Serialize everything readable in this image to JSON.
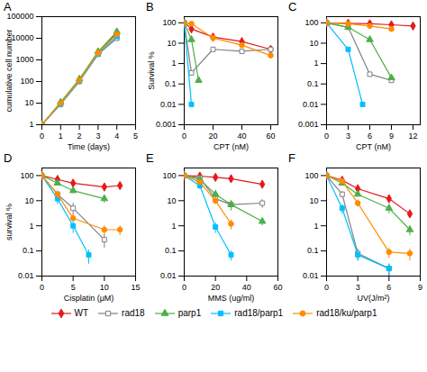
{
  "chart_data": [
    {
      "type": "line",
      "title": "A",
      "xlabel": "Time (days)",
      "ylabel": "cumulative cell number",
      "log": "y",
      "legend": "bottom",
      "xlim": [
        0,
        5
      ],
      "xticks": [
        0,
        1,
        2,
        3,
        4,
        5
      ],
      "ylim": [
        1,
        100000
      ],
      "yticks": [
        1,
        10,
        100,
        1000,
        10000,
        100000
      ],
      "series": [
        {
          "name": "WT",
          "color": "#e41a1c",
          "marker": "diamond",
          "x": [
            0,
            1,
            2,
            3,
            4
          ],
          "values": [
            1,
            10,
            120,
            2200,
            18000
          ]
        },
        {
          "name": "rad18",
          "color": "#808080",
          "marker": "open square",
          "x": [
            0,
            1,
            2,
            3,
            4
          ],
          "values": [
            1,
            9,
            100,
            1800,
            10000
          ]
        },
        {
          "name": "parp1",
          "color": "#4daf4a",
          "marker": "triangle",
          "x": [
            0,
            1,
            2,
            3,
            4
          ],
          "values": [
            1,
            11,
            130,
            2400,
            20000
          ]
        },
        {
          "name": "rad18/parp1",
          "color": "#00bfff",
          "marker": "square",
          "x": [
            0,
            1,
            2,
            3,
            4
          ],
          "values": [
            1,
            9,
            105,
            1900,
            12000
          ]
        },
        {
          "name": "rad18/ku/parp1",
          "color": "#ff8c00",
          "marker": "circle",
          "x": [
            0,
            1,
            2,
            3,
            4
          ],
          "values": [
            1,
            10,
            115,
            2100,
            15000
          ]
        }
      ]
    },
    {
      "type": "line",
      "title": "B",
      "xlabel": "CPT (nM)",
      "ylabel": "Survival %",
      "log": "y",
      "legend": "bottom",
      "xlim": [
        0,
        65
      ],
      "xticks": [
        0,
        20,
        40,
        60
      ],
      "ylim": [
        0.001,
        200
      ],
      "yticks": [
        0.001,
        0.01,
        0.1,
        1,
        10,
        100
      ],
      "series": [
        {
          "name": "WT",
          "color": "#e41a1c",
          "marker": "diamond",
          "x": [
            0,
            5,
            20,
            40,
            60
          ],
          "values": [
            100,
            50,
            20,
            12,
            5
          ]
        },
        {
          "name": "rad18",
          "color": "#808080",
          "marker": "open square",
          "x": [
            0,
            5,
            20,
            40,
            60
          ],
          "values": [
            100,
            0.35,
            5,
            4,
            5
          ]
        },
        {
          "name": "parp1",
          "color": "#4daf4a",
          "marker": "triangle",
          "x": [
            0,
            5,
            10
          ],
          "values": [
            100,
            15,
            0.15
          ]
        },
        {
          "name": "rad18/parp1",
          "color": "#00bfff",
          "marker": "square",
          "x": [
            0,
            5
          ],
          "values": [
            100,
            0.01
          ]
        },
        {
          "name": "rad18/ku/parp1",
          "color": "#ff8c00",
          "marker": "circle",
          "x": [
            0,
            5,
            20,
            40,
            60
          ],
          "values": [
            100,
            90,
            18,
            8,
            2.5
          ]
        }
      ]
    },
    {
      "type": "line",
      "title": "C",
      "xlabel": "CPT (nM)",
      "log": "y",
      "legend": "bottom",
      "xlim": [
        0,
        13
      ],
      "xticks": [
        0,
        3,
        6,
        9,
        12
      ],
      "ylim": [
        0.001,
        200
      ],
      "yticks": [
        0.001,
        0.01,
        0.1,
        1,
        10,
        100
      ],
      "series": [
        {
          "name": "WT",
          "color": "#e41a1c",
          "marker": "diamond",
          "x": [
            0,
            3,
            6,
            9,
            12
          ],
          "values": [
            100,
            95,
            90,
            80,
            70
          ]
        },
        {
          "name": "rad18",
          "color": "#808080",
          "marker": "open square",
          "x": [
            0,
            3,
            6,
            9,
            12
          ],
          "values": [
            100,
            60,
            0.3,
            0.15,
            null
          ]
        },
        {
          "name": "parp1",
          "color": "#4daf4a",
          "marker": "triangle",
          "x": [
            0,
            3,
            6,
            9,
            12
          ],
          "values": [
            100,
            60,
            15,
            0.2,
            null
          ]
        },
        {
          "name": "rad18/parp1",
          "color": "#00bfff",
          "marker": "square",
          "x": [
            0,
            3,
            5,
            9,
            12
          ],
          "values": [
            100,
            5,
            0.01,
            null,
            null
          ]
        },
        {
          "name": "rad18/ku/parp1",
          "color": "#ff8c00",
          "marker": "circle",
          "x": [
            0,
            3,
            6,
            9,
            12
          ],
          "values": [
            100,
            90,
            70,
            50,
            null
          ]
        }
      ]
    },
    {
      "type": "line",
      "title": "D",
      "xlabel": "Cisplatin (μM)",
      "ylabel": "survival %",
      "log": "y",
      "legend": "bottom",
      "xlim": [
        0,
        15
      ],
      "xticks": [
        0,
        5,
        10,
        15
      ],
      "ylim": [
        0.01,
        200
      ],
      "yticks": [
        0.01,
        0.1,
        1,
        10,
        100
      ],
      "series": [
        {
          "name": "WT",
          "color": "#e41a1c",
          "marker": "diamond",
          "x": [
            0,
            2.5,
            5,
            10,
            12.5
          ],
          "values": [
            100,
            70,
            50,
            35,
            40
          ],
          "yerr": [
            0,
            8,
            8,
            8,
            8
          ]
        },
        {
          "name": "rad18",
          "color": "#808080",
          "marker": "open square",
          "x": [
            0,
            2.5,
            5,
            10
          ],
          "values": [
            100,
            18,
            5,
            0.28
          ],
          "yerr": [
            0,
            6,
            3,
            0.15
          ]
        },
        {
          "name": "parp1",
          "color": "#4daf4a",
          "marker": "triangle",
          "x": [
            0,
            2.5,
            5,
            10
          ],
          "values": [
            100,
            50,
            25,
            12
          ],
          "yerr": [
            0,
            8,
            6,
            4
          ]
        },
        {
          "name": "rad18/parp1",
          "color": "#00bfff",
          "marker": "square",
          "x": [
            0,
            2.5,
            5,
            7.5
          ],
          "values": [
            100,
            12,
            1,
            0.07
          ],
          "yerr": [
            0,
            5,
            0.5,
            0.04
          ]
        },
        {
          "name": "rad18/ku/parp1",
          "color": "#ff8c00",
          "marker": "circle",
          "x": [
            0,
            2.5,
            5,
            10,
            12.5
          ],
          "values": [
            100,
            18,
            2,
            0.7,
            0.7
          ],
          "yerr": [
            0,
            5,
            0.5,
            0.3,
            0.3
          ]
        }
      ]
    },
    {
      "type": "line",
      "title": "E",
      "xlabel": "MMS (ug/ml)",
      "log": "y",
      "legend": "bottom",
      "xlim": [
        0,
        60
      ],
      "xticks": [
        0,
        20,
        40,
        60
      ],
      "ylim": [
        0.01,
        200
      ],
      "yticks": [
        0.01,
        0.1,
        1,
        10,
        100
      ],
      "series": [
        {
          "name": "WT",
          "color": "#e41a1c",
          "marker": "diamond",
          "x": [
            0,
            10,
            20,
            30,
            50
          ],
          "values": [
            100,
            95,
            85,
            75,
            45
          ],
          "yerr": [
            0,
            5,
            5,
            5,
            5
          ]
        },
        {
          "name": "rad18",
          "color": "#808080",
          "marker": "open square",
          "x": [
            0,
            10,
            20,
            30,
            50
          ],
          "values": [
            100,
            80,
            12,
            7,
            8
          ],
          "yerr": [
            0,
            8,
            4,
            3,
            3
          ]
        },
        {
          "name": "parp1",
          "color": "#4daf4a",
          "marker": "triangle",
          "x": [
            0,
            10,
            20,
            30,
            50
          ],
          "values": [
            100,
            70,
            18,
            7,
            1.5
          ],
          "yerr": [
            0,
            6,
            5,
            3,
            0.5
          ]
        },
        {
          "name": "rad18/parp1",
          "color": "#00bfff",
          "marker": "square",
          "x": [
            0,
            10,
            20,
            30
          ],
          "values": [
            100,
            40,
            0.9,
            0.07
          ],
          "yerr": [
            0,
            12,
            0.4,
            0.03
          ]
        },
        {
          "name": "rad18/ku/parp1",
          "color": "#ff8c00",
          "marker": "circle",
          "x": [
            0,
            10,
            20,
            30
          ],
          "values": [
            100,
            55,
            10,
            1.2
          ],
          "yerr": [
            0,
            6,
            3,
            0.5
          ]
        }
      ]
    },
    {
      "type": "line",
      "title": "F",
      "xlabel": "UV(J/m²)",
      "log": "y",
      "legend": "bottom",
      "xlim": [
        0,
        9
      ],
      "xticks": [
        0,
        3,
        6,
        9
      ],
      "ylim": [
        0.01,
        200
      ],
      "yticks": [
        0.01,
        0.1,
        1,
        10,
        100
      ],
      "series": [
        {
          "name": "WT",
          "color": "#e41a1c",
          "marker": "diamond",
          "x": [
            0,
            1.5,
            3,
            6,
            8
          ],
          "values": [
            100,
            65,
            30,
            12,
            3
          ],
          "yerr": [
            0,
            6,
            5,
            3,
            1
          ]
        },
        {
          "name": "rad18",
          "color": "#808080",
          "marker": "open square",
          "x": [
            0,
            1.5,
            3,
            6
          ],
          "values": [
            100,
            18,
            0.08,
            0.02
          ],
          "yerr": [
            0,
            5,
            0.04,
            0.01
          ]
        },
        {
          "name": "parp1",
          "color": "#4daf4a",
          "marker": "triangle",
          "x": [
            0,
            1.5,
            3,
            6,
            8
          ],
          "values": [
            100,
            50,
            18,
            5,
            0.7
          ],
          "yerr": [
            0,
            5,
            4,
            2,
            0.3
          ]
        },
        {
          "name": "rad18/parp1",
          "color": "#00bfff",
          "marker": "square",
          "x": [
            0,
            1.5,
            3,
            6
          ],
          "values": [
            100,
            5,
            0.07,
            0.02
          ],
          "yerr": [
            0,
            2,
            0.03,
            0.01
          ]
        },
        {
          "name": "rad18/ku/parp1",
          "color": "#ff8c00",
          "marker": "circle",
          "x": [
            0,
            1.5,
            3,
            6,
            8
          ],
          "values": [
            100,
            60,
            8,
            0.09,
            0.08
          ],
          "yerr": [
            0,
            5,
            2.5,
            0.04,
            0.04
          ]
        }
      ]
    }
  ]
}
